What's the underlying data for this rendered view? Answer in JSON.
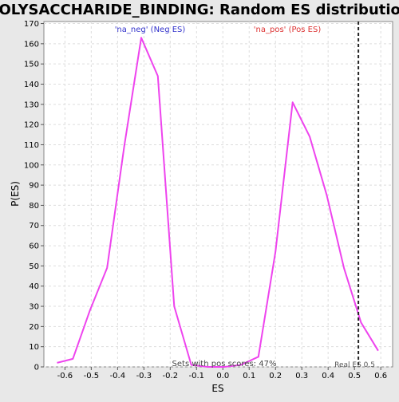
{
  "chart_data": {
    "type": "line",
    "title": "POLYSACCHARIDE_BINDING: Random ES distribution",
    "xlabel": "ES",
    "ylabel": "P(ES)",
    "xlim": [
      -0.68,
      0.645
    ],
    "ylim": [
      0,
      171
    ],
    "x_ticks": [
      -0.6,
      -0.5,
      -0.4,
      -0.3,
      -0.2,
      -0.1,
      0.0,
      0.1,
      0.2,
      0.3,
      0.4,
      0.5,
      0.6
    ],
    "x_tick_labels": [
      "-0.6",
      "-0.5",
      "-0.4",
      "-0.3",
      "-0.2",
      "-0.1",
      "0.0",
      "0.1",
      "0.2",
      "0.3",
      "0.4",
      "0.5",
      "0.6"
    ],
    "y_ticks": [
      0,
      10,
      20,
      30,
      40,
      50,
      60,
      70,
      80,
      90,
      100,
      110,
      120,
      130,
      140,
      150,
      160,
      170
    ],
    "grid": true,
    "series": [
      {
        "color": "#ee44ee",
        "x": [
          -0.63,
          -0.57,
          -0.505,
          -0.44,
          -0.375,
          -0.31,
          -0.247,
          -0.185,
          -0.12,
          -0.057,
          0.005,
          0.068,
          0.135,
          0.2,
          0.265,
          0.33,
          0.395,
          0.46,
          0.525,
          0.59
        ],
        "y": [
          2,
          4,
          28,
          49,
          109,
          163,
          144,
          30,
          1,
          0,
          0,
          1,
          5,
          57,
          131,
          114,
          85,
          49,
          22,
          8
        ]
      }
    ],
    "real_es": {
      "value": 0.515,
      "label": "Real ES 0.5"
    },
    "annotations": {
      "neg": {
        "text": "'na_neg' (Neg ES)",
        "color": "#3333cc"
      },
      "pos": {
        "text": "'na_pos' (Pos ES)",
        "color": "#dd3333"
      },
      "sets": {
        "text": "Sets with pos scores: 47%",
        "color": "#444444"
      }
    },
    "colors": {
      "background": "#e8e8e8",
      "plot_bg": "#ffffff",
      "grid": "#dddddd",
      "axis": "#888888"
    }
  }
}
